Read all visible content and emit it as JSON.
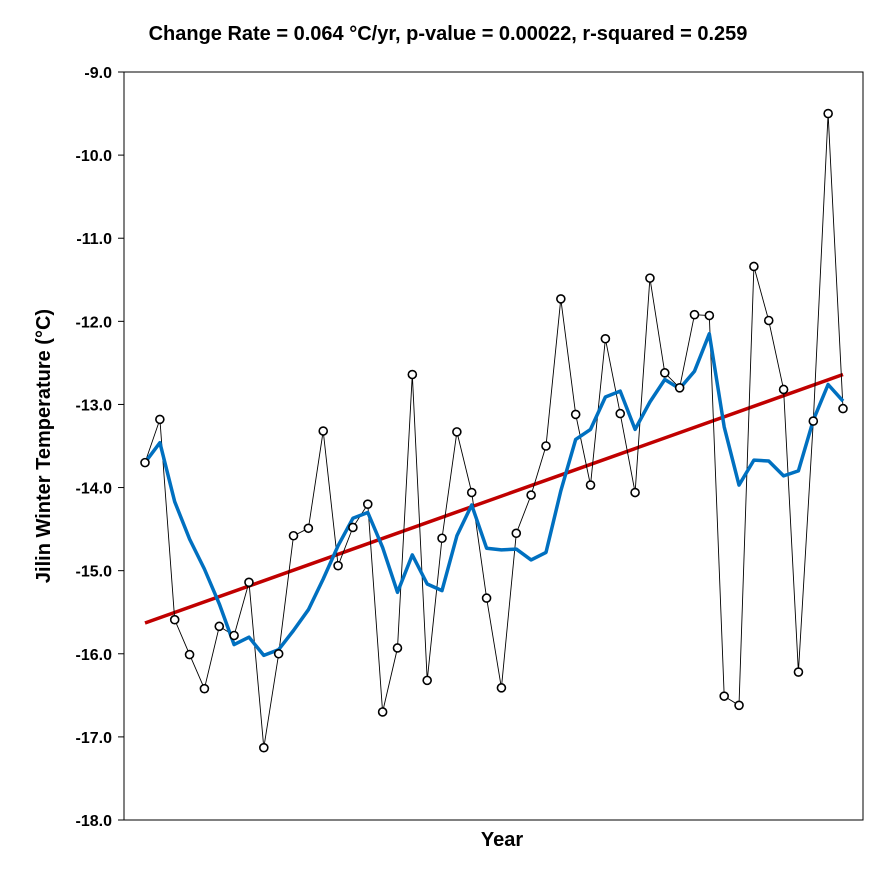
{
  "chart_data": {
    "type": "line",
    "title": "Change Rate =  0.064 °C/yr,  p-value =  0.00022,  r-squared =  0.259",
    "xlabel": "Year",
    "ylabel": "Jilin Winter Temperature (°C)",
    "ylim": [
      -18.0,
      -9.0
    ],
    "y_ticks": [
      "-9.0",
      "-10.0",
      "-11.0",
      "-12.0",
      "-13.0",
      "-14.0",
      "-15.0",
      "-16.0",
      "-17.0",
      "-18.0"
    ],
    "grid": false,
    "colors": {
      "observed": "#000000",
      "smoothed": "#0070C0",
      "trend": "#C00000"
    },
    "series": [
      {
        "values": [
          -13.7,
          -13.18,
          -15.59,
          -16.01,
          -16.42,
          -15.67,
          -15.78,
          -15.14,
          -17.13,
          -16.0,
          -14.58,
          -14.49,
          -13.32,
          -14.94,
          -14.48,
          -14.2,
          -16.7,
          -15.93,
          -12.64,
          -16.32,
          -14.61,
          -13.33,
          -14.06,
          -15.33,
          -16.41,
          -14.55,
          -14.09,
          -13.5,
          -11.73,
          -13.12,
          -13.97,
          -12.21,
          -13.11,
          -14.06,
          -11.48,
          -12.62,
          -12.8,
          -11.92,
          -11.93,
          -16.51,
          -16.62,
          -11.34,
          -11.99,
          -12.82,
          -16.22,
          -13.2,
          -9.5,
          -13.05
        ]
      },
      {
        "values": [
          -13.7,
          -13.46,
          -14.17,
          -14.62,
          -14.98,
          -15.4,
          -15.89,
          -15.8,
          -16.02,
          -15.95,
          -15.72,
          -15.47,
          -15.1,
          -14.7,
          -14.37,
          -14.3,
          -14.72,
          -15.26,
          -14.81,
          -15.16,
          -15.24,
          -14.58,
          -14.21,
          -14.73,
          -14.75,
          -14.74,
          -14.87,
          -14.78,
          -14.04,
          -13.42,
          -13.3,
          -12.91,
          -12.84,
          -13.3,
          -12.97,
          -12.7,
          -12.81,
          -12.6,
          -12.15,
          -13.27,
          -13.97,
          -13.67,
          -13.68,
          -13.86,
          -13.8,
          -13.19,
          -12.76,
          -12.96
        ]
      },
      {
        "values": [
          -15.63,
          -12.64
        ]
      }
    ]
  }
}
